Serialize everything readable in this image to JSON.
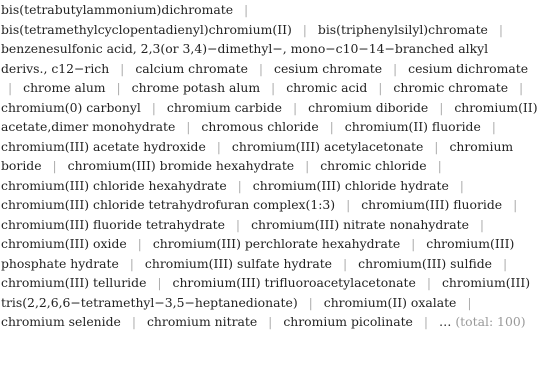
{
  "separator": "|",
  "items": [
    "bis(tetrabutylammonium)dichromate",
    "bis(tetramethylcyclopentadienyl)chromium(II)",
    "bis(triphenylsilyl)chromate",
    "benzenesulfonic acid, 2,3(or 3,4)−dimethyl−, mono−c10−14−branched alkyl derivs., c12−rich",
    "calcium chromate",
    "cesium chromate",
    "cesium dichromate",
    "chrome alum",
    "chrome potash alum",
    "chromic acid",
    "chromic chromate",
    "chromium(0) carbonyl",
    "chromium carbide",
    "chromium diboride",
    "chromium(II) acetate,dimer monohydrate",
    "chromous chloride",
    "chromium(II) fluoride",
    "chromium(III) acetate hydroxide",
    "chromium(III) acetylacetonate",
    "chromium boride",
    "chromium(III) bromide hexahydrate",
    "chromic chloride",
    "chromium(III) chloride hexahydrate",
    "chromium(III) chloride hydrate",
    "chromium(III) chloride tetrahydrofuran complex(1:3)",
    "chromium(III) fluoride",
    "chromium(III) fluoride tetrahydrate",
    "chromium(III) nitrate nonahydrate",
    "chromium(III) oxide",
    "chromium(III) perchlorate hexahydrate",
    "chromium(III) phosphate hydrate",
    "chromium(III) sulfate hydrate",
    "chromium(III) sulfide",
    "chromium(III) telluride",
    "chromium(III) trifluoroacetylacetonate",
    "chromium(III) tris(2,2,6,6−tetramethyl−3,5−heptanedionate)",
    "chromium(II) oxalate",
    "chromium selenide",
    "chromium nitrate",
    "chromium picolinate"
  ],
  "ellipsis": "…",
  "total": "(total: 100)"
}
